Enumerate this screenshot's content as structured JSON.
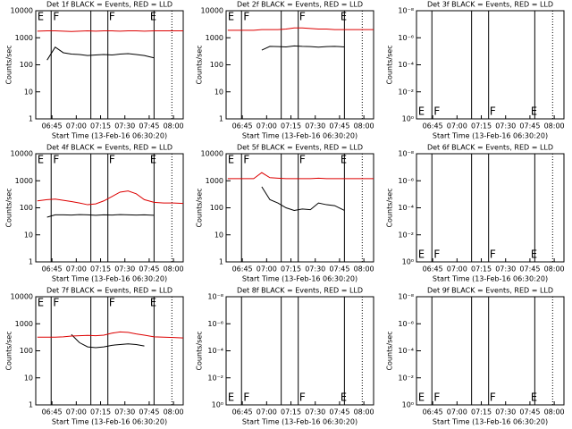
{
  "chart_data": [
    {
      "type": "line",
      "title": "Det 1f BLACK = Events, RED = LLD",
      "xlabel": "Start Time (13-Feb-16 06:30:20)",
      "ylabel": "Counts/sec",
      "log": true,
      "xlim": [
        35,
        126
      ],
      "xticks": [
        {
          "value": 45,
          "label": "06:45"
        },
        {
          "value": 60,
          "label": "07:00"
        },
        {
          "value": 75,
          "label": "07:15"
        },
        {
          "value": 90,
          "label": "07:30"
        },
        {
          "value": 105,
          "label": "07:45"
        },
        {
          "value": 120,
          "label": "08:00"
        }
      ],
      "ylim": [
        1,
        10000
      ],
      "yticks": [
        1,
        10,
        100,
        1000,
        10000
      ],
      "vlines": [
        44.5,
        69,
        79.5,
        108
      ],
      "dotted_vlines": [
        119
      ],
      "annotations": [
        {
          "text": "E",
          "x": 35.5
        },
        {
          "text": "F",
          "x": 45
        },
        {
          "text": "F",
          "x": 79.5
        },
        {
          "text": "E",
          "x": 105
        }
      ],
      "x": [
        36,
        42,
        47,
        52,
        57,
        62,
        67,
        72,
        77,
        82,
        87,
        92,
        97,
        102,
        108,
        114,
        120,
        126
      ],
      "series": [
        {
          "color": "#000000",
          "values": [
            null,
            150,
            450,
            280,
            250,
            240,
            220,
            230,
            240,
            230,
            250,
            260,
            240,
            220,
            180,
            null,
            null,
            null
          ]
        },
        {
          "color": "#dd0000",
          "values": [
            1750,
            1800,
            1800,
            1750,
            1700,
            1750,
            1800,
            1750,
            1800,
            1800,
            1750,
            1800,
            1800,
            1750,
            1800,
            1800,
            1800,
            1800
          ]
        }
      ]
    },
    {
      "type": "line",
      "title": "Det 2f BLACK = Events, RED = LLD",
      "xlabel": "Start Time (13-Feb-16 06:30:20)",
      "ylabel": "Counts/sec",
      "log": true,
      "xlim": [
        35,
        126
      ],
      "xticks": [
        {
          "value": 45,
          "label": "06:45"
        },
        {
          "value": 60,
          "label": "07:00"
        },
        {
          "value": 75,
          "label": "07:15"
        },
        {
          "value": 90,
          "label": "07:30"
        },
        {
          "value": 105,
          "label": "07:45"
        },
        {
          "value": 120,
          "label": "08:00"
        }
      ],
      "ylim": [
        1,
        10000
      ],
      "yticks": [
        1,
        10,
        100,
        1000,
        10000
      ],
      "vlines": [
        44.5,
        69,
        79.5,
        108
      ],
      "dotted_vlines": [
        119
      ],
      "annotations": [
        {
          "text": "E",
          "x": 35.5
        },
        {
          "text": "F",
          "x": 45
        },
        {
          "text": "F",
          "x": 79.5
        },
        {
          "text": "E",
          "x": 105
        }
      ],
      "x": [
        36,
        42,
        47,
        52,
        57,
        62,
        67,
        72,
        77,
        82,
        87,
        92,
        97,
        102,
        108,
        114,
        120,
        126
      ],
      "series": [
        {
          "color": "#000000",
          "values": [
            null,
            null,
            null,
            null,
            350,
            480,
            470,
            460,
            500,
            480,
            470,
            450,
            470,
            480,
            460,
            null,
            null,
            null
          ]
        },
        {
          "color": "#dd0000",
          "values": [
            1900,
            1900,
            1900,
            1900,
            2000,
            2000,
            2000,
            2100,
            2300,
            2300,
            2200,
            2100,
            2100,
            2000,
            2000,
            2000,
            2000,
            2000
          ]
        }
      ]
    },
    {
      "type": "line",
      "title": "Det 3f BLACK = Events, RED = LLD",
      "xlabel": "Start Time (13-Feb-16 06:30:20)",
      "ylabel": "Counts/sec",
      "log": true,
      "xlim": [
        35,
        126
      ],
      "xticks": [
        {
          "value": 45,
          "label": "06:45"
        },
        {
          "value": 60,
          "label": "07:00"
        },
        {
          "value": 75,
          "label": "07:15"
        },
        {
          "value": 90,
          "label": "07:30"
        },
        {
          "value": 105,
          "label": "07:45"
        },
        {
          "value": 120,
          "label": "08:00"
        }
      ],
      "ylim": [
        1,
        1e-08
      ],
      "yticks": [
        {
          "value": 1,
          "label": "10⁰"
        },
        {
          "value": 0.01,
          "label": "10⁻²"
        },
        {
          "value": 0.0001,
          "label": "10⁻⁴"
        },
        {
          "value": 1e-06,
          "label": "10⁻⁶"
        },
        {
          "value": 1e-08,
          "label": "10⁻⁸"
        }
      ],
      "vlines": [
        44.5,
        69,
        79.5,
        108
      ],
      "dotted_vlines": [
        119
      ],
      "annotations": [
        {
          "text": "E",
          "x": 35.5
        },
        {
          "text": "F",
          "x": 45
        },
        {
          "text": "F",
          "x": 79.5
        },
        {
          "text": "E",
          "x": 105
        }
      ]
    },
    {
      "type": "line",
      "title": "Det 4f BLACK = Events, RED = LLD",
      "xlabel": "Start Time (13-Feb-16 06:30:20)",
      "ylabel": "Counts/sec",
      "log": true,
      "xlim": [
        35,
        126
      ],
      "xticks": [
        {
          "value": 45,
          "label": "06:45"
        },
        {
          "value": 60,
          "label": "07:00"
        },
        {
          "value": 75,
          "label": "07:15"
        },
        {
          "value": 90,
          "label": "07:30"
        },
        {
          "value": 105,
          "label": "07:45"
        },
        {
          "value": 120,
          "label": "08:00"
        }
      ],
      "ylim": [
        1,
        10000
      ],
      "yticks": [
        1,
        10,
        100,
        1000,
        10000
      ],
      "vlines": [
        44.5,
        69,
        79.5,
        108
      ],
      "dotted_vlines": [
        119
      ],
      "annotations": [
        {
          "text": "E",
          "x": 35.5
        },
        {
          "text": "F",
          "x": 45
        },
        {
          "text": "F",
          "x": 79.5
        },
        {
          "text": "E",
          "x": 105
        }
      ],
      "x": [
        36,
        42,
        47,
        52,
        57,
        62,
        67,
        72,
        77,
        82,
        87,
        92,
        97,
        102,
        108,
        114,
        120,
        126
      ],
      "series": [
        {
          "color": "#000000",
          "values": [
            null,
            45,
            55,
            55,
            54,
            56,
            55,
            53,
            55,
            54,
            56,
            55,
            54,
            55,
            53,
            null,
            null,
            null
          ]
        },
        {
          "color": "#dd0000",
          "values": [
            180,
            200,
            210,
            190,
            170,
            150,
            130,
            140,
            180,
            260,
            380,
            420,
            330,
            200,
            160,
            150,
            150,
            145
          ]
        }
      ]
    },
    {
      "type": "line",
      "title": "Det 5f BLACK = Events, RED = LLD",
      "xlabel": "Start Time (13-Feb-16 06:30:20)",
      "ylabel": "Counts/sec",
      "log": true,
      "xlim": [
        35,
        126
      ],
      "xticks": [
        {
          "value": 45,
          "label": "06:45"
        },
        {
          "value": 60,
          "label": "07:00"
        },
        {
          "value": 75,
          "label": "07:15"
        },
        {
          "value": 90,
          "label": "07:30"
        },
        {
          "value": 105,
          "label": "07:45"
        },
        {
          "value": 120,
          "label": "08:00"
        }
      ],
      "ylim": [
        1,
        10000
      ],
      "yticks": [
        1,
        10,
        100,
        1000,
        10000
      ],
      "vlines": [
        44.5,
        69,
        79.5,
        108
      ],
      "dotted_vlines": [
        119
      ],
      "annotations": [
        {
          "text": "E",
          "x": 35.5
        },
        {
          "text": "F",
          "x": 45
        },
        {
          "text": "F",
          "x": 79.5
        },
        {
          "text": "E",
          "x": 105
        }
      ],
      "x": [
        36,
        42,
        47,
        52,
        57,
        62,
        67,
        72,
        77,
        82,
        87,
        92,
        97,
        102,
        108,
        114,
        120,
        126
      ],
      "series": [
        {
          "color": "#000000",
          "values": [
            null,
            null,
            null,
            null,
            600,
            200,
            150,
            100,
            80,
            90,
            85,
            150,
            130,
            120,
            80,
            null,
            null,
            null
          ]
        },
        {
          "color": "#dd0000",
          "values": [
            1200,
            1200,
            1200,
            1200,
            2000,
            1300,
            1250,
            1200,
            1200,
            1200,
            1200,
            1250,
            1200,
            1200,
            1200,
            1200,
            1200,
            1200
          ]
        }
      ]
    },
    {
      "type": "line",
      "title": "Det 6f BLACK = Events, RED = LLD",
      "xlabel": "Start Time (13-Feb-16 06:30:20)",
      "ylabel": "Counts/sec",
      "log": true,
      "xlim": [
        35,
        126
      ],
      "xticks": [
        {
          "value": 45,
          "label": "06:45"
        },
        {
          "value": 60,
          "label": "07:00"
        },
        {
          "value": 75,
          "label": "07:15"
        },
        {
          "value": 90,
          "label": "07:30"
        },
        {
          "value": 105,
          "label": "07:45"
        },
        {
          "value": 120,
          "label": "08:00"
        }
      ],
      "ylim": [
        1,
        1e-08
      ],
      "yticks": [
        {
          "value": 1,
          "label": "10⁰"
        },
        {
          "value": 0.01,
          "label": "10⁻²"
        },
        {
          "value": 0.0001,
          "label": "10⁻⁴"
        },
        {
          "value": 1e-06,
          "label": "10⁻⁶"
        },
        {
          "value": 1e-08,
          "label": "10⁻⁸"
        }
      ],
      "vlines": [
        44.5,
        69,
        79.5,
        108
      ],
      "dotted_vlines": [
        119
      ],
      "annotations": [
        {
          "text": "E",
          "x": 35.5
        },
        {
          "text": "F",
          "x": 45
        },
        {
          "text": "F",
          "x": 79.5
        },
        {
          "text": "E",
          "x": 105
        }
      ]
    },
    {
      "type": "line",
      "title": "Det 7f BLACK = Events, RED = LLD",
      "xlabel": "Start Time (13-Feb-16 06:30:20)",
      "ylabel": "Counts/sec",
      "log": true,
      "xlim": [
        35,
        126
      ],
      "xticks": [
        {
          "value": 45,
          "label": "06:45"
        },
        {
          "value": 60,
          "label": "07:00"
        },
        {
          "value": 75,
          "label": "07:15"
        },
        {
          "value": 90,
          "label": "07:30"
        },
        {
          "value": 105,
          "label": "07:45"
        },
        {
          "value": 120,
          "label": "08:00"
        }
      ],
      "ylim": [
        1,
        10000
      ],
      "yticks": [
        1,
        10,
        100,
        1000,
        10000
      ],
      "vlines": [
        44.5,
        69,
        79.5,
        108
      ],
      "dotted_vlines": [
        119
      ],
      "annotations": [
        {
          "text": "E",
          "x": 35.5
        },
        {
          "text": "F",
          "x": 45
        },
        {
          "text": "F",
          "x": 79.5
        },
        {
          "text": "E",
          "x": 105
        }
      ],
      "x": [
        36,
        42,
        47,
        52,
        57,
        62,
        67,
        72,
        77,
        82,
        87,
        92,
        97,
        102,
        108,
        114,
        120,
        126
      ],
      "series": [
        {
          "color": "#000000",
          "values": [
            null,
            null,
            null,
            null,
            400,
            200,
            140,
            130,
            140,
            160,
            170,
            180,
            170,
            150,
            null,
            null,
            null,
            null
          ]
        },
        {
          "color": "#dd0000",
          "values": [
            320,
            320,
            320,
            330,
            350,
            360,
            370,
            360,
            380,
            450,
            500,
            480,
            420,
            380,
            330,
            320,
            310,
            300
          ]
        }
      ]
    },
    {
      "type": "line",
      "title": "Det 8f BLACK = Events, RED = LLD",
      "xlabel": "Start Time (13-Feb-16 06:30:20)",
      "ylabel": "Counts/sec",
      "log": true,
      "xlim": [
        35,
        126
      ],
      "xticks": [
        {
          "value": 45,
          "label": "06:45"
        },
        {
          "value": 60,
          "label": "07:00"
        },
        {
          "value": 75,
          "label": "07:15"
        },
        {
          "value": 90,
          "label": "07:30"
        },
        {
          "value": 105,
          "label": "07:45"
        },
        {
          "value": 120,
          "label": "08:00"
        }
      ],
      "ylim": [
        1,
        1e-08
      ],
      "yticks": [
        {
          "value": 1,
          "label": "10⁰"
        },
        {
          "value": 0.01,
          "label": "10⁻²"
        },
        {
          "value": 0.0001,
          "label": "10⁻⁴"
        },
        {
          "value": 1e-06,
          "label": "10⁻⁶"
        },
        {
          "value": 1e-08,
          "label": "10⁻⁸"
        }
      ],
      "vlines": [
        44.5,
        69,
        79.5,
        108
      ],
      "dotted_vlines": [
        119
      ],
      "annotations": [
        {
          "text": "E",
          "x": 35.5
        },
        {
          "text": "F",
          "x": 45
        },
        {
          "text": "F",
          "x": 79.5
        },
        {
          "text": "E",
          "x": 105
        }
      ]
    },
    {
      "type": "line",
      "title": "Det 9f BLACK = Events, RED = LLD",
      "xlabel": "Start Time (13-Feb-16 06:30:20)",
      "ylabel": "Counts/sec",
      "log": true,
      "xlim": [
        35,
        126
      ],
      "xticks": [
        {
          "value": 45,
          "label": "06:45"
        },
        {
          "value": 60,
          "label": "07:00"
        },
        {
          "value": 75,
          "label": "07:15"
        },
        {
          "value": 90,
          "label": "07:30"
        },
        {
          "value": 105,
          "label": "07:45"
        },
        {
          "value": 120,
          "label": "08:00"
        }
      ],
      "ylim": [
        1,
        1e-08
      ],
      "yticks": [
        {
          "value": 1,
          "label": "10⁰"
        },
        {
          "value": 0.01,
          "label": "10⁻²"
        },
        {
          "value": 0.0001,
          "label": "10⁻⁴"
        },
        {
          "value": 1e-06,
          "label": "10⁻⁶"
        },
        {
          "value": 1e-08,
          "label": "10⁻⁸"
        }
      ],
      "vlines": [
        44.5,
        69,
        79.5,
        108
      ],
      "dotted_vlines": [
        119
      ],
      "annotations": [
        {
          "text": "E",
          "x": 35.5
        },
        {
          "text": "F",
          "x": 45
        },
        {
          "text": "F",
          "x": 79.5
        },
        {
          "text": "E",
          "x": 105
        }
      ]
    }
  ]
}
